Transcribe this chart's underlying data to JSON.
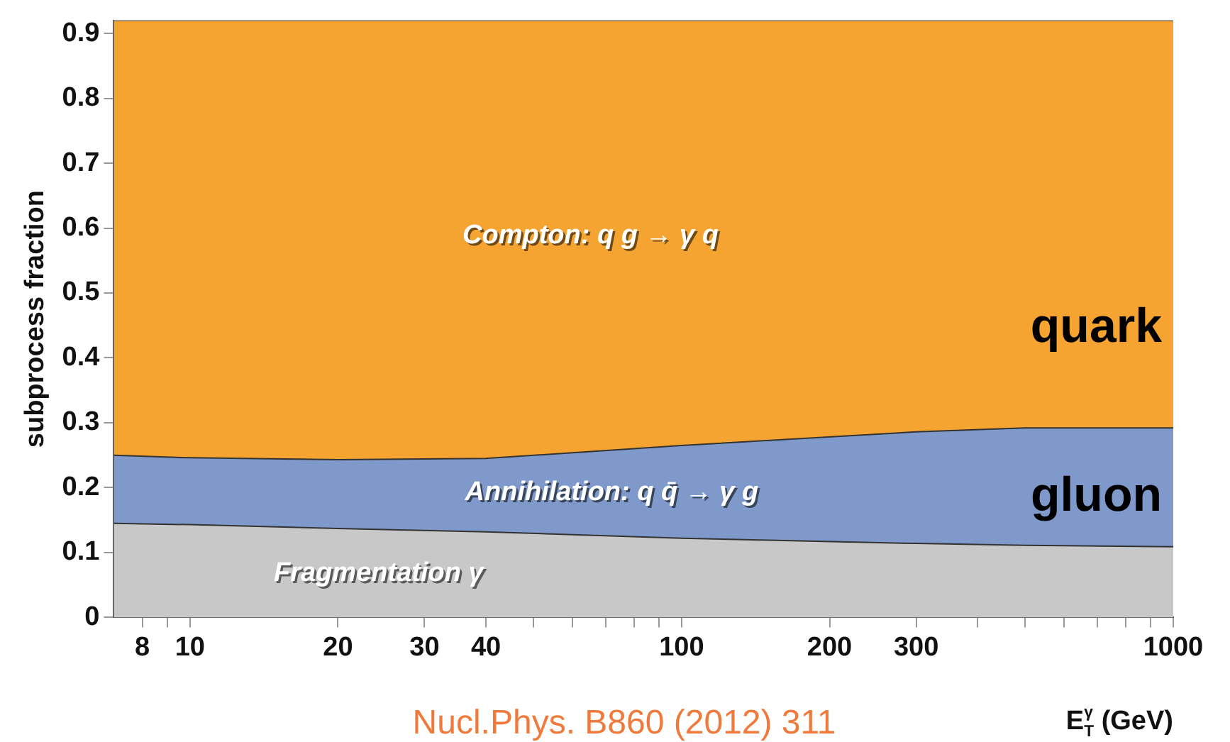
{
  "chart_data": {
    "type": "area",
    "stacked": true,
    "xlabel": "E$_{T}$$^{γ}$ (GeV)",
    "ylabel": "subprocess fraction",
    "log": "x",
    "x": [
      7,
      10,
      20,
      40,
      100,
      300,
      500,
      1000
    ],
    "series": [
      {
        "name": "Fragmentation γ",
        "color": "#c8c8c8",
        "values": [
          0.145,
          0.143,
          0.137,
          0.132,
          0.122,
          0.114,
          0.111,
          0.109
        ]
      },
      {
        "name": "Annihilation: q q̄ → γ g",
        "color": "#7f9aca",
        "values": [
          0.105,
          0.103,
          0.106,
          0.113,
          0.143,
          0.172,
          0.181,
          0.183
        ]
      },
      {
        "name": "Compton: q g → γ q",
        "color": "#f5a431",
        "values": [
          0.67,
          0.674,
          0.677,
          0.675,
          0.655,
          0.634,
          0.628,
          0.628
        ]
      }
    ],
    "xlim": [
      7,
      1000
    ],
    "xticks": [
      8,
      {
        "value": 9,
        "label": null
      },
      10,
      20,
      30,
      40,
      {
        "value": 50,
        "label": null
      },
      {
        "value": 60,
        "label": null
      },
      {
        "value": 70,
        "label": null
      },
      {
        "value": 80,
        "label": null
      },
      {
        "value": 90,
        "label": null
      },
      100,
      200,
      300,
      {
        "value": 400,
        "label": null
      },
      {
        "value": 500,
        "label": null
      },
      {
        "value": 600,
        "label": null
      },
      {
        "value": 700,
        "label": null
      },
      {
        "value": 800,
        "label": null
      },
      {
        "value": 900,
        "label": null
      },
      1000
    ],
    "ylim": [
      0,
      0.92
    ],
    "yticks": [
      0,
      0.1,
      0.2,
      0.3,
      0.4,
      0.5,
      0.6,
      0.7,
      0.8,
      0.9
    ],
    "grid": false,
    "legend": false,
    "annotations": [
      "quark",
      "gluon",
      "Nucl.Phys. B860 (2012) 311"
    ]
  }
}
